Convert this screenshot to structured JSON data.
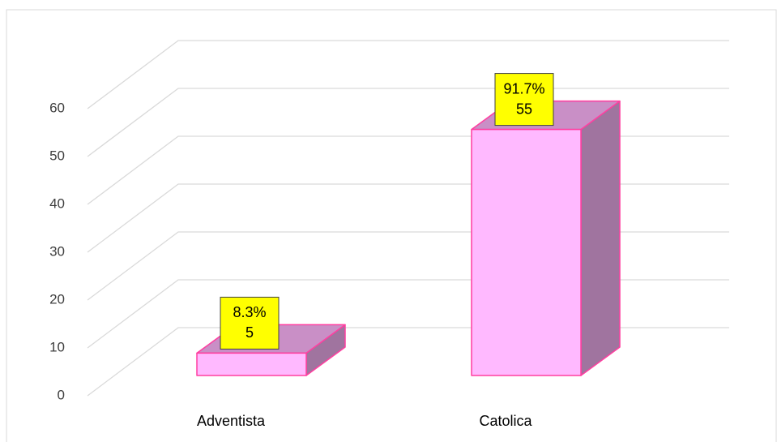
{
  "chart_data": {
    "type": "bar3d",
    "categories": [
      "Adventista",
      "Catolica"
    ],
    "values": [
      5,
      55
    ],
    "percentages": [
      8.3,
      91.7
    ],
    "percentage_labels": [
      "8.3%",
      "91.7%"
    ],
    "ylim": [
      0,
      60
    ],
    "yticks": [
      0,
      10,
      20,
      30,
      40,
      50,
      60
    ],
    "grid": true,
    "color": "#ffb9ff",
    "edge_color": "#ff3fa0",
    "label_background": "#ffff00"
  }
}
